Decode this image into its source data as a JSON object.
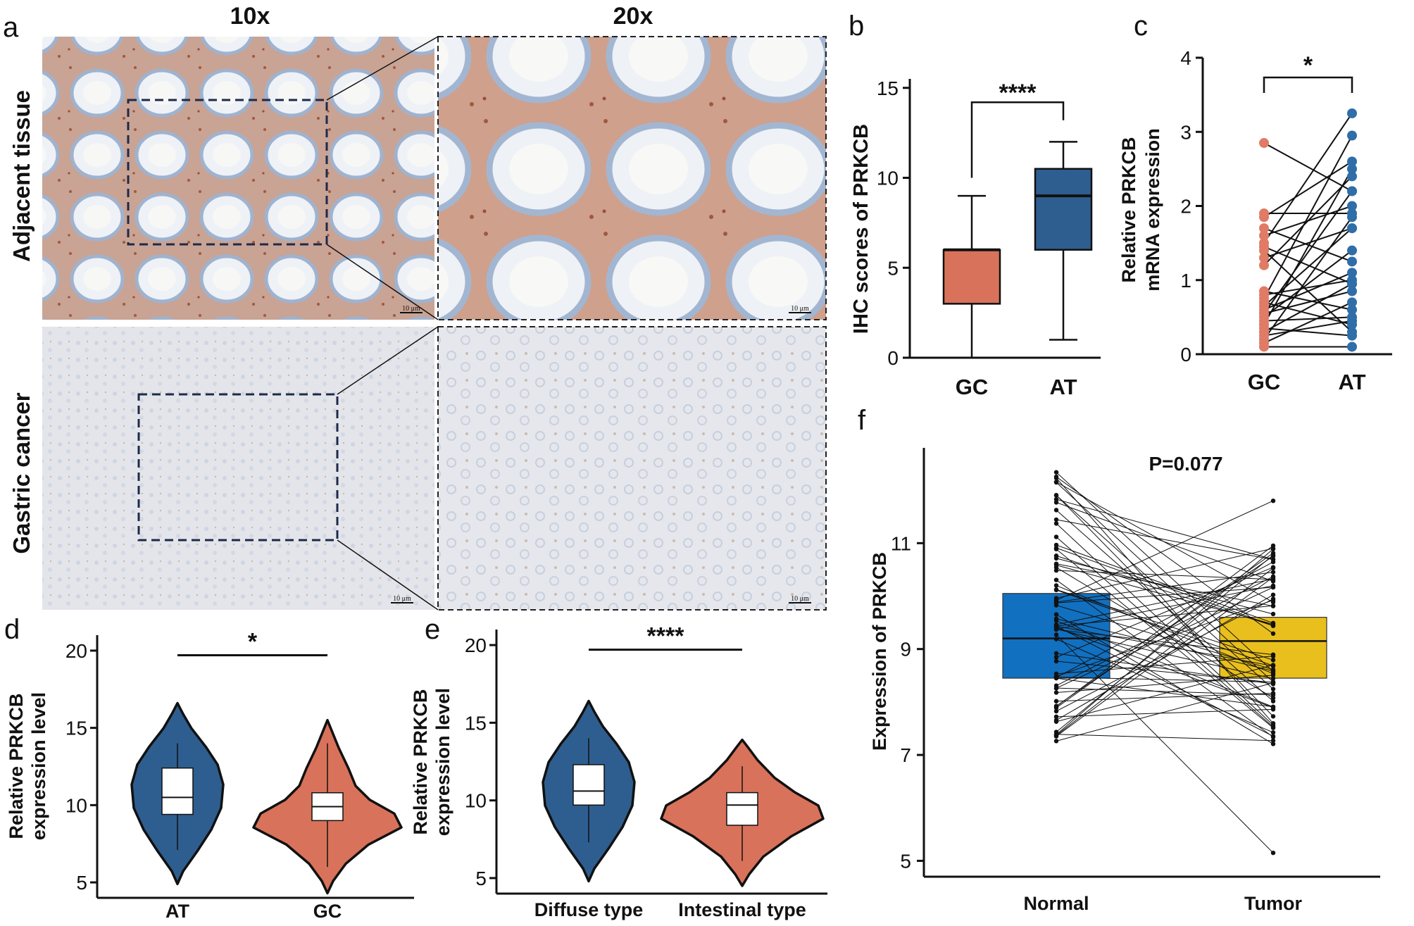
{
  "panel_a": {
    "label": "a",
    "col_headers": [
      "10x",
      "20x"
    ],
    "row_labels": [
      "Adjacent tissue",
      "Gastric cancer"
    ],
    "scale_bar": "10 μm"
  },
  "panel_b": {
    "label": "b",
    "ylabel": "IHC scores of PRKCB",
    "yticks": [
      "0",
      "5",
      "10",
      "15"
    ],
    "categories": [
      "GC",
      "AT"
    ],
    "significance": "****",
    "colors": [
      "#d9725a",
      "#2e5e8f"
    ]
  },
  "panel_c": {
    "label": "c",
    "ylabel_lines": [
      "Relative PRKCB",
      "mRNA expression"
    ],
    "yticks": [
      "0",
      "1",
      "2",
      "3",
      "4"
    ],
    "categories": [
      "GC",
      "AT"
    ],
    "significance": "*",
    "colors": [
      "#e07b66",
      "#2f6ea8"
    ]
  },
  "panel_d": {
    "label": "d",
    "ylabel_lines": [
      "Relative PRKCB",
      "expression level"
    ],
    "yticks": [
      "5",
      "10",
      "15",
      "20"
    ],
    "categories": [
      "AT",
      "GC"
    ],
    "significance": "*",
    "colors": [
      "#2e5e8f",
      "#d9725a"
    ]
  },
  "panel_e": {
    "label": "e",
    "ylabel_lines": [
      "Relative PRKCB",
      "expression level"
    ],
    "yticks": [
      "5",
      "10",
      "15",
      "20"
    ],
    "categories": [
      "Diffuse type",
      "Intestinal type"
    ],
    "significance": "****",
    "colors": [
      "#2e5e8f",
      "#d9725a"
    ]
  },
  "panel_f": {
    "label": "f",
    "ylabel": "Expression of PRKCB",
    "yticks": [
      "5",
      "7",
      "9",
      "11"
    ],
    "categories": [
      "Normal",
      "Tumor"
    ],
    "pvalue": "P=0.077",
    "colors": [
      "#1170c0",
      "#e8bf1c"
    ]
  },
  "chart_data": [
    {
      "type": "box",
      "panel": "b",
      "ylabel": "IHC scores of PRKCB",
      "ylim": [
        0,
        15
      ],
      "categories": [
        "GC",
        "AT"
      ],
      "boxes": [
        {
          "min": 0,
          "q1": 3,
          "median": 6,
          "q3": 6,
          "max": 9
        },
        {
          "min": 1,
          "q1": 6,
          "median": 9,
          "q3": 10.5,
          "max": 12
        }
      ]
    },
    {
      "type": "scatter",
      "panel": "c",
      "ylabel": "Relative PRKCB mRNA expression",
      "ylim": [
        0,
        4
      ],
      "categories": [
        "GC",
        "AT"
      ],
      "pairs": [
        [
          2.85,
          2.2
        ],
        [
          1.9,
          1.9
        ],
        [
          1.85,
          2.6
        ],
        [
          1.7,
          1.25
        ],
        [
          1.6,
          2.0
        ],
        [
          1.5,
          3.25
        ],
        [
          1.45,
          0.95
        ],
        [
          1.4,
          0.3
        ],
        [
          1.3,
          1.7
        ],
        [
          1.2,
          2.4
        ],
        [
          0.85,
          0.6
        ],
        [
          0.8,
          1.0
        ],
        [
          0.75,
          2.95
        ],
        [
          0.7,
          0.4
        ],
        [
          0.65,
          1.7
        ],
        [
          0.6,
          1.1
        ],
        [
          0.55,
          0.85
        ],
        [
          0.55,
          2.2
        ],
        [
          0.5,
          1.4
        ],
        [
          0.45,
          0.5
        ],
        [
          0.4,
          2.5
        ],
        [
          0.35,
          0.25
        ],
        [
          0.3,
          0.95
        ],
        [
          0.25,
          0.45
        ],
        [
          0.2,
          1.85
        ],
        [
          0.15,
          0.7
        ],
        [
          0.1,
          0.1
        ]
      ]
    },
    {
      "type": "violin",
      "panel": "d",
      "ylabel": "Relative PRKCB expression level",
      "ylim": [
        4,
        21
      ],
      "categories": [
        "AT",
        "GC"
      ],
      "boxes": [
        {
          "min": 7.1,
          "q1": 9.4,
          "median": 10.5,
          "q3": 12.4,
          "max": 14.0
        },
        {
          "min": 6.0,
          "q1": 9.0,
          "median": 9.9,
          "q3": 10.8,
          "max": 14.0
        }
      ],
      "ranges": [
        [
          4.9,
          16.6
        ],
        [
          4.3,
          15.5
        ]
      ]
    },
    {
      "type": "violin",
      "panel": "e",
      "ylabel": "Relative PRKCB expression level",
      "ylim": [
        4,
        21
      ],
      "categories": [
        "Diffuse type",
        "Intestinal type"
      ],
      "boxes": [
        {
          "min": 7.3,
          "q1": 9.7,
          "median": 10.6,
          "q3": 12.3,
          "max": 14.0
        },
        {
          "min": 6.1,
          "q1": 8.4,
          "median": 9.7,
          "q3": 10.5,
          "max": 12.2
        }
      ],
      "ranges": [
        [
          4.8,
          16.4
        ],
        [
          4.5,
          13.9
        ]
      ]
    },
    {
      "type": "box",
      "panel": "f",
      "ylabel": "Expression of PRKCB",
      "ylim": [
        4.7,
        12.8
      ],
      "categories": [
        "Normal",
        "Tumor"
      ],
      "pvalue": "P=0.077",
      "boxes": [
        {
          "q1": 8.45,
          "median": 9.2,
          "q3": 10.05
        },
        {
          "q1": 8.45,
          "median": 9.15,
          "q3": 9.6
        }
      ],
      "paired_points": "approximately 70 paired samples"
    }
  ]
}
